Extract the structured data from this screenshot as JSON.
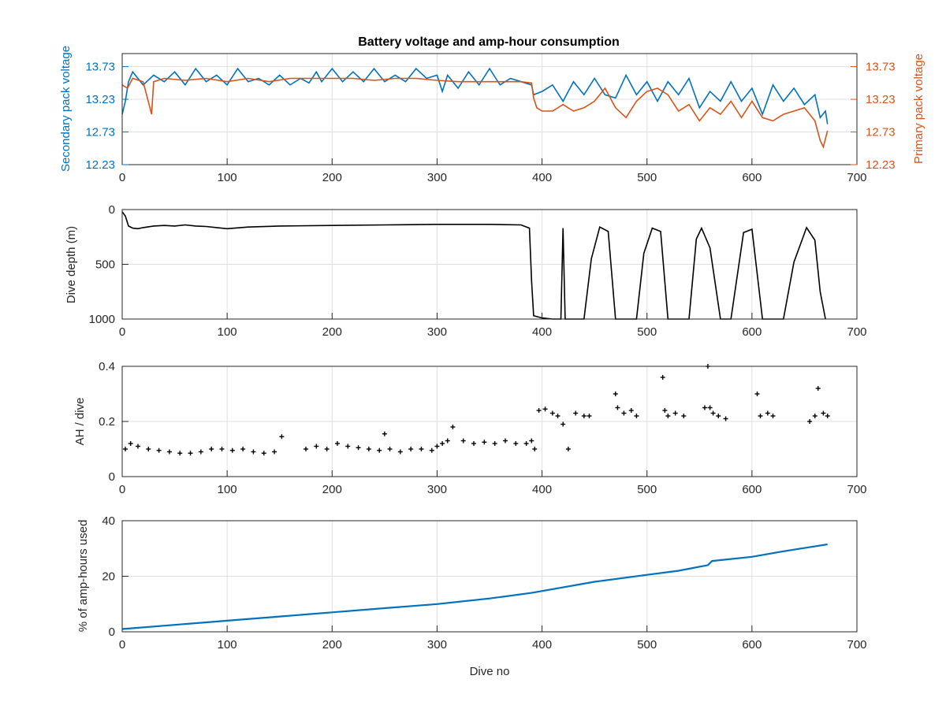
{
  "figure": {
    "title": "Battery voltage and amp-hour consumption",
    "xlabel": "Dive no"
  },
  "colors": {
    "secondary": "#0072BD",
    "primary": "#D95319",
    "depth": "#000000",
    "ah": "#000000",
    "pct": "#0072BD",
    "grid": "#DFDFDF",
    "axis": "#262626"
  },
  "chart_data": [
    {
      "type": "line",
      "title": "Battery voltage and amp-hour consumption",
      "xlabel": "",
      "xlim": [
        0,
        700
      ],
      "xticks": [
        0,
        100,
        200,
        300,
        400,
        500,
        600,
        700
      ],
      "ylabel": "Secondary pack voltage",
      "ylim": [
        12.23,
        13.93
      ],
      "yticks": [
        "12.23",
        "12.73",
        "13.23",
        "13.73"
      ],
      "y2label": "Primary pack voltage",
      "y2lim": [
        12.23,
        13.93
      ],
      "y2ticks": [
        "12.23",
        "12.73",
        "13.23",
        "13.73"
      ],
      "grid": true,
      "series": [
        {
          "name": "Secondary pack voltage",
          "axis": "left",
          "x": [
            0,
            3,
            6,
            10,
            20,
            30,
            40,
            50,
            60,
            70,
            80,
            90,
            100,
            110,
            120,
            130,
            140,
            150,
            160,
            170,
            178,
            185,
            190,
            200,
            210,
            220,
            230,
            240,
            250,
            260,
            270,
            280,
            290,
            300,
            305,
            310,
            320,
            330,
            340,
            350,
            360,
            370,
            380,
            390,
            392,
            400,
            410,
            420,
            430,
            440,
            450,
            460,
            470,
            480,
            490,
            500,
            510,
            520,
            530,
            540,
            550,
            560,
            570,
            580,
            590,
            600,
            610,
            620,
            630,
            640,
            650,
            660,
            665,
            670,
            672
          ],
          "y": [
            13.0,
            13.2,
            13.5,
            13.65,
            13.45,
            13.6,
            13.5,
            13.65,
            13.45,
            13.7,
            13.5,
            13.6,
            13.45,
            13.7,
            13.5,
            13.55,
            13.45,
            13.6,
            13.45,
            13.55,
            13.48,
            13.65,
            13.5,
            13.7,
            13.5,
            13.65,
            13.5,
            13.7,
            13.5,
            13.6,
            13.5,
            13.7,
            13.55,
            13.6,
            13.35,
            13.6,
            13.4,
            13.65,
            13.45,
            13.7,
            13.45,
            13.55,
            13.5,
            13.45,
            13.3,
            13.35,
            13.45,
            13.2,
            13.5,
            13.3,
            13.55,
            13.3,
            13.25,
            13.6,
            13.3,
            13.5,
            13.2,
            13.5,
            13.3,
            13.55,
            13.1,
            13.35,
            13.2,
            13.5,
            13.2,
            13.4,
            13.0,
            13.45,
            13.2,
            13.4,
            13.15,
            13.3,
            12.95,
            13.05,
            12.85
          ]
        },
        {
          "name": "Primary pack voltage",
          "axis": "right",
          "x": [
            0,
            5,
            10,
            20,
            28,
            30,
            40,
            60,
            80,
            100,
            120,
            140,
            160,
            180,
            200,
            220,
            240,
            260,
            280,
            300,
            320,
            340,
            360,
            380,
            390,
            392,
            395,
            400,
            410,
            420,
            430,
            440,
            450,
            460,
            470,
            480,
            490,
            500,
            510,
            520,
            530,
            540,
            550,
            560,
            570,
            580,
            590,
            600,
            610,
            620,
            630,
            640,
            650,
            660,
            665,
            668,
            672
          ],
          "y": [
            13.45,
            13.4,
            13.55,
            13.5,
            13.0,
            13.5,
            13.55,
            13.52,
            13.55,
            13.5,
            13.55,
            13.5,
            13.55,
            13.55,
            13.55,
            13.55,
            13.52,
            13.55,
            13.55,
            13.52,
            13.5,
            13.5,
            13.5,
            13.5,
            13.48,
            13.25,
            13.1,
            13.05,
            13.05,
            13.15,
            13.05,
            13.1,
            13.2,
            13.4,
            13.1,
            12.95,
            13.2,
            13.35,
            13.4,
            13.3,
            13.05,
            13.15,
            12.9,
            13.1,
            13.0,
            13.2,
            12.95,
            13.2,
            12.95,
            12.9,
            13.0,
            13.05,
            13.1,
            12.9,
            12.6,
            12.5,
            12.75
          ]
        }
      ]
    },
    {
      "type": "line",
      "xlabel": "",
      "xlim": [
        0,
        700
      ],
      "xticks": [
        0,
        100,
        200,
        300,
        400,
        500,
        600,
        700
      ],
      "ylabel": "Dive depth (m)",
      "ylim": [
        1000,
        0
      ],
      "yticks": [
        0,
        500,
        1000
      ],
      "reversed_y": true,
      "grid": true,
      "series": [
        {
          "x": [
            0,
            3,
            6,
            10,
            15,
            20,
            30,
            40,
            50,
            60,
            70,
            80,
            90,
            100,
            120,
            150,
            200,
            250,
            300,
            350,
            380,
            388,
            390,
            392,
            400,
            410,
            418,
            420,
            422,
            430,
            440,
            447,
            455,
            463,
            470,
            480,
            490,
            497,
            505,
            513,
            520,
            530,
            540,
            547,
            552,
            560,
            570,
            580,
            592,
            600,
            610,
            620,
            630,
            640,
            648,
            652,
            660,
            665,
            670
          ],
          "y": [
            20,
            60,
            150,
            170,
            175,
            165,
            150,
            145,
            150,
            140,
            150,
            155,
            165,
            175,
            160,
            150,
            145,
            140,
            135,
            135,
            140,
            170,
            650,
            970,
            990,
            1000,
            1000,
            170,
            1000,
            1000,
            1000,
            450,
            160,
            200,
            1000,
            1000,
            1000,
            400,
            170,
            200,
            1000,
            1000,
            1000,
            270,
            170,
            350,
            1000,
            1000,
            210,
            180,
            1000,
            1000,
            1000,
            480,
            270,
            165,
            280,
            750,
            1000
          ]
        }
      ]
    },
    {
      "type": "scatter",
      "xlabel": "",
      "xlim": [
        0,
        700
      ],
      "xticks": [
        0,
        100,
        200,
        300,
        400,
        500,
        600,
        700
      ],
      "ylabel": "AH / dive",
      "ylim": [
        0,
        0.4
      ],
      "yticks": [
        "0",
        "0.2",
        "0.4"
      ],
      "grid": true,
      "series": [
        {
          "x": [
            3,
            8,
            15,
            25,
            35,
            45,
            55,
            65,
            75,
            85,
            95,
            105,
            115,
            125,
            135,
            145,
            152,
            175,
            185,
            195,
            205,
            215,
            225,
            235,
            245,
            250,
            255,
            265,
            275,
            285,
            295,
            300,
            305,
            310,
            315,
            325,
            335,
            345,
            355,
            365,
            375,
            385,
            390,
            393,
            397,
            403,
            410,
            415,
            420,
            425,
            432,
            440,
            445,
            470,
            472,
            478,
            485,
            490,
            515,
            517,
            520,
            527,
            535,
            555,
            558,
            560,
            563,
            568,
            575,
            605,
            608,
            615,
            620,
            655,
            660,
            663,
            668,
            672
          ],
          "y": [
            0.1,
            0.12,
            0.11,
            0.1,
            0.095,
            0.09,
            0.085,
            0.085,
            0.09,
            0.1,
            0.1,
            0.095,
            0.1,
            0.09,
            0.085,
            0.09,
            0.145,
            0.1,
            0.11,
            0.1,
            0.12,
            0.11,
            0.105,
            0.1,
            0.095,
            0.155,
            0.1,
            0.09,
            0.1,
            0.1,
            0.095,
            0.11,
            0.12,
            0.13,
            0.18,
            0.13,
            0.12,
            0.125,
            0.12,
            0.13,
            0.12,
            0.12,
            0.13,
            0.1,
            0.24,
            0.245,
            0.23,
            0.22,
            0.19,
            0.1,
            0.23,
            0.22,
            0.22,
            0.3,
            0.25,
            0.23,
            0.24,
            0.22,
            0.36,
            0.24,
            0.22,
            0.23,
            0.22,
            0.25,
            0.4,
            0.25,
            0.23,
            0.22,
            0.21,
            0.3,
            0.22,
            0.23,
            0.22,
            0.2,
            0.22,
            0.32,
            0.23,
            0.22
          ]
        }
      ]
    },
    {
      "type": "line",
      "xlabel": "Dive no",
      "xlim": [
        0,
        700
      ],
      "xticks": [
        0,
        100,
        200,
        300,
        400,
        500,
        600,
        700
      ],
      "ylabel": "% of amp-hours used",
      "ylim": [
        0,
        40
      ],
      "yticks": [
        0,
        20,
        40
      ],
      "grid": true,
      "series": [
        {
          "x": [
            0,
            50,
            100,
            150,
            200,
            250,
            300,
            350,
            390,
            420,
            450,
            500,
            530,
            558,
            562,
            600,
            630,
            672
          ],
          "y": [
            1.0,
            2.5,
            4.0,
            5.5,
            7.0,
            8.5,
            10.0,
            12.0,
            14.0,
            16.0,
            18.0,
            20.5,
            22.0,
            24.0,
            25.5,
            27.0,
            29.0,
            31.5
          ]
        }
      ]
    }
  ]
}
